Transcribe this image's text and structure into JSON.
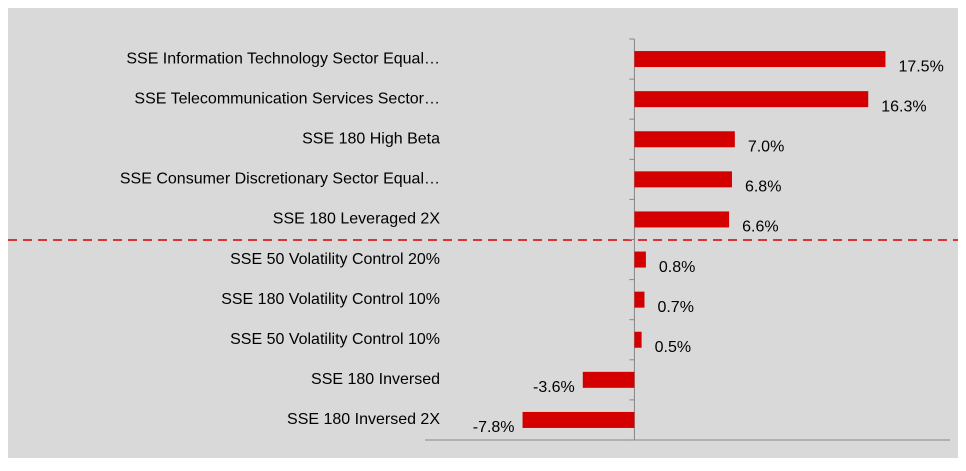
{
  "chart_data": {
    "type": "barh",
    "categories": [
      "SSE Information Technology Sector Equal…",
      "SSE Telecommunication Services Sector…",
      "SSE 180 High Beta",
      "SSE Consumer Discretionary Sector Equal…",
      "SSE 180 Leveraged 2X",
      "SSE 50 Volatility Control 20%",
      "SSE 180 Volatility Control 10%",
      "SSE 50 Volatility Control 10%",
      "SSE 180 Inversed",
      "SSE 180 Inversed 2X"
    ],
    "values": [
      17.5,
      16.3,
      7.0,
      6.8,
      6.6,
      0.8,
      0.7,
      0.5,
      -3.6,
      -7.8
    ],
    "value_labels": [
      "17.5%",
      "16.3%",
      "7.0%",
      "6.8%",
      "6.6%",
      "0.8%",
      "0.7%",
      "0.5%",
      "-3.6%",
      "-7.8%"
    ],
    "color": "#d40000",
    "xlim": [
      -14.6,
      22.0
    ]
  }
}
